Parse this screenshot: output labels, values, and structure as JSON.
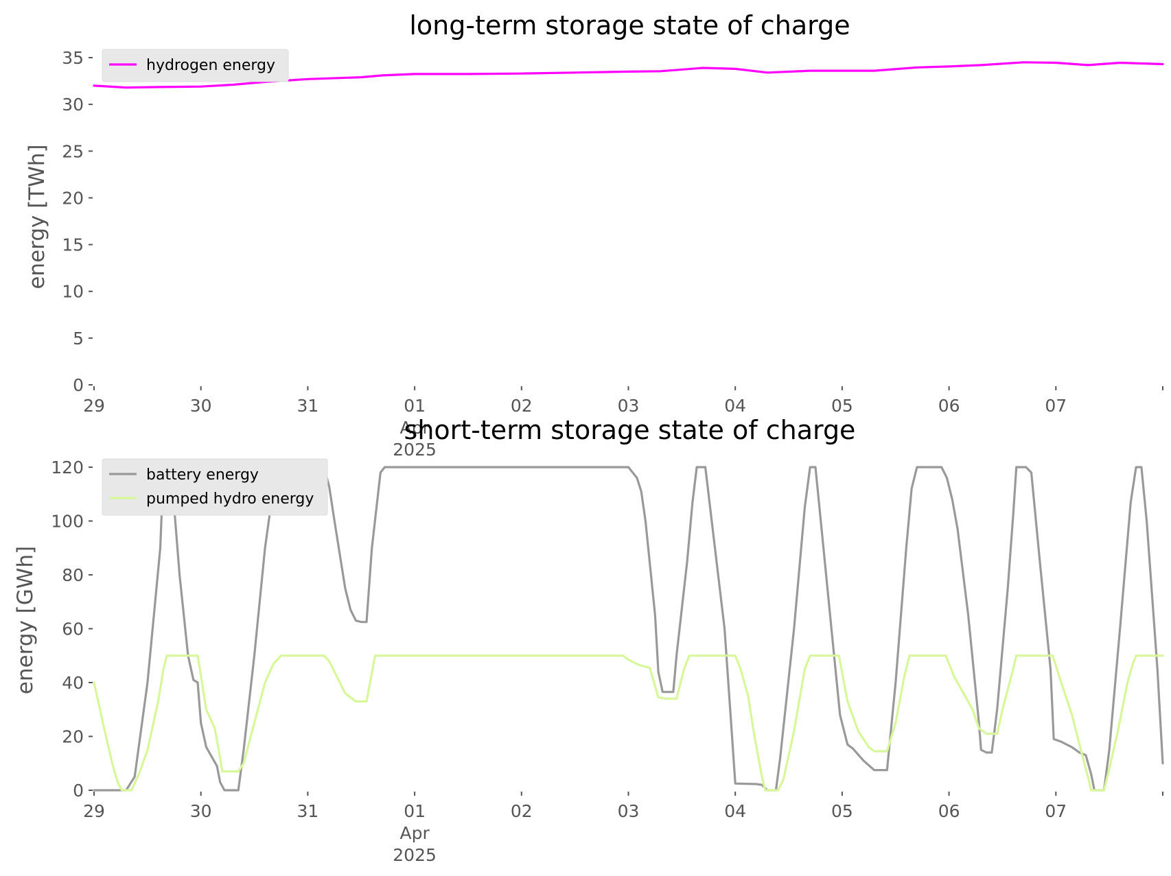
{
  "chart_data": [
    {
      "type": "line",
      "title": "long-term storage state of charge",
      "ylabel": "energy [TWh]",
      "ylim": [
        0,
        35
      ],
      "yticks": [
        0,
        5,
        10,
        15,
        20,
        25,
        30,
        35
      ],
      "xlim": [
        0,
        10
      ],
      "xticks": [
        {
          "t": 0,
          "lines": [
            "29"
          ]
        },
        {
          "t": 1,
          "lines": [
            "30"
          ]
        },
        {
          "t": 2,
          "lines": [
            "31"
          ]
        },
        {
          "t": 3,
          "lines": [
            "01",
            "Apr",
            "2025"
          ]
        },
        {
          "t": 4,
          "lines": [
            "02"
          ]
        },
        {
          "t": 5,
          "lines": [
            "03"
          ]
        },
        {
          "t": 6,
          "lines": [
            "04"
          ]
        },
        {
          "t": 7,
          "lines": [
            "05"
          ]
        },
        {
          "t": 8,
          "lines": [
            "06"
          ]
        },
        {
          "t": 9,
          "lines": [
            "07"
          ]
        }
      ],
      "legend_position": "top-left",
      "series": [
        {
          "name": "hydrogen energy",
          "color": "#ff00ff",
          "points": [
            [
              0,
              32.0
            ],
            [
              0.3,
              31.8
            ],
            [
              0.6,
              31.85
            ],
            [
              1.0,
              31.9
            ],
            [
              1.3,
              32.1
            ],
            [
              1.6,
              32.4
            ],
            [
              2.0,
              32.7
            ],
            [
              2.5,
              32.9
            ],
            [
              2.7,
              33.1
            ],
            [
              3.0,
              33.25
            ],
            [
              3.5,
              33.25
            ],
            [
              4.0,
              33.3
            ],
            [
              4.5,
              33.4
            ],
            [
              5.0,
              33.5
            ],
            [
              5.3,
              33.55
            ],
            [
              5.7,
              33.9
            ],
            [
              6.0,
              33.8
            ],
            [
              6.3,
              33.4
            ],
            [
              6.7,
              33.6
            ],
            [
              7.0,
              33.6
            ],
            [
              7.3,
              33.6
            ],
            [
              7.7,
              33.95
            ],
            [
              8.0,
              34.05
            ],
            [
              8.3,
              34.2
            ],
            [
              8.7,
              34.5
            ],
            [
              9.0,
              34.45
            ],
            [
              9.3,
              34.2
            ],
            [
              9.6,
              34.45
            ],
            [
              10.0,
              34.3
            ]
          ]
        }
      ]
    },
    {
      "type": "line",
      "title": "short-term storage state of charge",
      "ylabel": "energy [GWh]",
      "ylim": [
        0,
        120
      ],
      "yticks": [
        0,
        20,
        40,
        60,
        80,
        100,
        120
      ],
      "xlim": [
        0,
        10
      ],
      "xticks": [
        {
          "t": 0,
          "lines": [
            "29"
          ]
        },
        {
          "t": 1,
          "lines": [
            "30"
          ]
        },
        {
          "t": 2,
          "lines": [
            "31"
          ]
        },
        {
          "t": 3,
          "lines": [
            "01",
            "Apr",
            "2025"
          ]
        },
        {
          "t": 4,
          "lines": [
            "02"
          ]
        },
        {
          "t": 5,
          "lines": [
            "03"
          ]
        },
        {
          "t": 6,
          "lines": [
            "04"
          ]
        },
        {
          "t": 7,
          "lines": [
            "05"
          ]
        },
        {
          "t": 8,
          "lines": [
            "06"
          ]
        },
        {
          "t": 9,
          "lines": [
            "07"
          ]
        }
      ],
      "legend_position": "top-left",
      "series": [
        {
          "name": "battery energy",
          "color": "#999999",
          "points": [
            [
              0,
              0
            ],
            [
              0.3,
              0
            ],
            [
              0.38,
              5
            ],
            [
              0.5,
              40
            ],
            [
              0.62,
              90
            ],
            [
              0.65,
              120
            ],
            [
              0.72,
              120
            ],
            [
              0.8,
              80
            ],
            [
              0.88,
              50
            ],
            [
              0.93,
              41
            ],
            [
              0.97,
              40
            ],
            [
              1.0,
              25
            ],
            [
              1.05,
              16
            ],
            [
              1.15,
              9
            ],
            [
              1.18,
              3
            ],
            [
              1.22,
              0
            ],
            [
              1.35,
              0
            ],
            [
              1.4,
              15
            ],
            [
              1.5,
              50
            ],
            [
              1.6,
              90
            ],
            [
              1.67,
              110
            ],
            [
              1.75,
              120
            ],
            [
              2.15,
              120
            ],
            [
              2.2,
              113
            ],
            [
              2.25,
              100
            ],
            [
              2.35,
              75
            ],
            [
              2.4,
              67
            ],
            [
              2.45,
              63
            ],
            [
              2.5,
              62.5
            ],
            [
              2.55,
              62.5
            ],
            [
              2.6,
              90
            ],
            [
              2.68,
              118
            ],
            [
              2.72,
              120
            ],
            [
              5.0,
              120
            ],
            [
              5.08,
              116
            ],
            [
              5.12,
              111
            ],
            [
              5.16,
              100
            ],
            [
              5.25,
              65
            ],
            [
              5.28,
              44
            ],
            [
              5.32,
              36.5
            ],
            [
              5.42,
              36.5
            ],
            [
              5.45,
              50
            ],
            [
              5.55,
              85
            ],
            [
              5.6,
              107
            ],
            [
              5.64,
              120
            ],
            [
              5.72,
              120
            ],
            [
              5.78,
              100
            ],
            [
              5.9,
              60
            ],
            [
              5.97,
              20
            ],
            [
              6.0,
              2.5
            ],
            [
              6.2,
              2.3
            ],
            [
              6.25,
              2
            ],
            [
              6.3,
              0
            ],
            [
              6.38,
              0
            ],
            [
              6.42,
              12
            ],
            [
              6.55,
              60
            ],
            [
              6.65,
              105
            ],
            [
              6.7,
              120
            ],
            [
              6.75,
              120
            ],
            [
              6.8,
              100
            ],
            [
              6.9,
              60
            ],
            [
              6.98,
              28
            ],
            [
              7.05,
              17
            ],
            [
              7.1,
              15.5
            ],
            [
              7.2,
              11
            ],
            [
              7.3,
              7.5
            ],
            [
              7.42,
              7.5
            ],
            [
              7.5,
              40
            ],
            [
              7.6,
              90
            ],
            [
              7.65,
              112
            ],
            [
              7.7,
              120
            ],
            [
              7.93,
              120
            ],
            [
              7.98,
              116
            ],
            [
              8.03,
              108
            ],
            [
              8.08,
              97
            ],
            [
              8.18,
              65
            ],
            [
              8.28,
              25
            ],
            [
              8.3,
              15
            ],
            [
              8.35,
              14
            ],
            [
              8.4,
              14
            ],
            [
              8.45,
              30
            ],
            [
              8.55,
              75
            ],
            [
              8.6,
              102
            ],
            [
              8.63,
              120
            ],
            [
              8.72,
              120
            ],
            [
              8.77,
              118
            ],
            [
              8.85,
              85
            ],
            [
              8.95,
              45
            ],
            [
              8.98,
              19
            ],
            [
              9.05,
              18
            ],
            [
              9.1,
              17
            ],
            [
              9.15,
              16
            ],
            [
              9.22,
              14
            ],
            [
              9.28,
              13
            ],
            [
              9.33,
              6
            ],
            [
              9.36,
              0
            ],
            [
              9.45,
              0
            ],
            [
              9.5,
              15
            ],
            [
              9.6,
              60
            ],
            [
              9.7,
              107
            ],
            [
              9.75,
              120
            ],
            [
              9.8,
              120
            ],
            [
              9.85,
              100
            ],
            [
              9.95,
              45
            ],
            [
              10.0,
              10
            ]
          ]
        },
        {
          "name": "pumped hydro energy",
          "color": "#d8f79a",
          "points": [
            [
              0,
              40
            ],
            [
              0.1,
              22
            ],
            [
              0.17,
              10
            ],
            [
              0.22,
              3
            ],
            [
              0.26,
              0
            ],
            [
              0.35,
              0
            ],
            [
              0.42,
              6
            ],
            [
              0.5,
              15
            ],
            [
              0.6,
              33
            ],
            [
              0.65,
              45
            ],
            [
              0.68,
              50
            ],
            [
              0.97,
              50
            ],
            [
              1.05,
              30
            ],
            [
              1.13,
              23
            ],
            [
              1.18,
              12
            ],
            [
              1.2,
              7
            ],
            [
              1.35,
              7
            ],
            [
              1.4,
              10
            ],
            [
              1.5,
              25
            ],
            [
              1.6,
              40
            ],
            [
              1.68,
              47
            ],
            [
              1.75,
              50
            ],
            [
              2.15,
              50
            ],
            [
              2.2,
              48
            ],
            [
              2.25,
              44
            ],
            [
              2.35,
              36
            ],
            [
              2.45,
              33
            ],
            [
              2.55,
              33
            ],
            [
              2.63,
              50
            ],
            [
              4.95,
              50
            ],
            [
              5.0,
              48.5
            ],
            [
              5.1,
              46.5
            ],
            [
              5.2,
              45.5
            ],
            [
              5.28,
              34.5
            ],
            [
              5.35,
              34
            ],
            [
              5.45,
              34
            ],
            [
              5.52,
              45
            ],
            [
              5.57,
              50
            ],
            [
              6.0,
              50
            ],
            [
              6.05,
              45
            ],
            [
              6.12,
              35
            ],
            [
              6.18,
              20
            ],
            [
              6.25,
              5
            ],
            [
              6.28,
              0
            ],
            [
              6.4,
              0
            ],
            [
              6.45,
              4
            ],
            [
              6.55,
              22
            ],
            [
              6.65,
              45
            ],
            [
              6.7,
              50
            ],
            [
              6.97,
              50
            ],
            [
              7.05,
              33
            ],
            [
              7.15,
              22
            ],
            [
              7.25,
              16
            ],
            [
              7.3,
              14.5
            ],
            [
              7.42,
              14.5
            ],
            [
              7.5,
              25
            ],
            [
              7.58,
              42
            ],
            [
              7.63,
              50
            ],
            [
              7.97,
              50
            ],
            [
              8.05,
              42
            ],
            [
              8.15,
              35
            ],
            [
              8.22,
              30
            ],
            [
              8.28,
              23
            ],
            [
              8.35,
              21
            ],
            [
              8.45,
              21
            ],
            [
              8.5,
              30
            ],
            [
              8.6,
              45
            ],
            [
              8.63,
              50
            ],
            [
              8.97,
              50
            ],
            [
              9.05,
              40
            ],
            [
              9.15,
              28
            ],
            [
              9.22,
              17
            ],
            [
              9.3,
              5
            ],
            [
              9.33,
              0
            ],
            [
              9.45,
              0
            ],
            [
              9.5,
              8
            ],
            [
              9.58,
              22
            ],
            [
              9.67,
              40
            ],
            [
              9.72,
              47
            ],
            [
              9.75,
              50
            ],
            [
              10.0,
              50
            ]
          ]
        }
      ]
    }
  ]
}
